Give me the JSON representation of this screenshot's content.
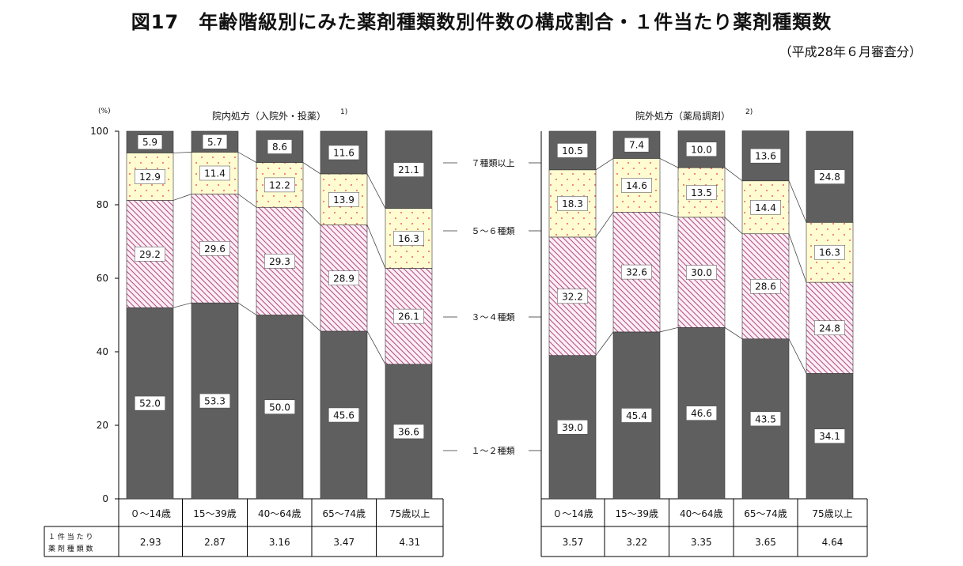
{
  "header": {
    "title": "図17　年齢階級別にみた薬剤種類数別件数の構成割合・１件当たり薬剤種類数",
    "subtitle": "（平成28年６月審査分）"
  },
  "row_label_line1": "１ 件 当 た り",
  "row_label_line2": "薬 剤 種 類 数",
  "unit_label": "(%)",
  "legend_labels": [
    "１～２種類",
    "３～４種類",
    "５～６種類",
    "７種類以上"
  ],
  "colors": {
    "dark": "#5f5f5f",
    "pink_fill": "#fbeef5",
    "pink_stripe": "#b4477e",
    "yellow_fill": "#fffcd2",
    "yellow_dot": "#ee3333",
    "axis": "#000000"
  },
  "chart_data": [
    {
      "type": "bar",
      "stacked": true,
      "title": "院内処方（入院外・投薬）",
      "note": "1)",
      "ylabel": "(%)",
      "ylim": [
        0,
        100
      ],
      "yticks": [
        0,
        20,
        40,
        60,
        80,
        100
      ],
      "categories": [
        "０～14歳",
        "15～39歳",
        "40～64歳",
        "65～74歳",
        "75歳以上"
      ],
      "series": [
        {
          "name": "１～２種類",
          "values": [
            52.0,
            53.3,
            50.0,
            45.6,
            36.6
          ],
          "labels": [
            "52.0",
            "53.3",
            "50.0",
            "45.6",
            "36.6"
          ]
        },
        {
          "name": "３～４種類",
          "values": [
            29.2,
            29.6,
            29.3,
            28.9,
            26.1
          ],
          "labels": [
            "29.2",
            "29.6",
            "29.3",
            "28.9",
            "26.1"
          ]
        },
        {
          "name": "５～６種類",
          "values": [
            12.9,
            11.4,
            12.2,
            13.9,
            16.3
          ],
          "labels": [
            "12.9",
            "11.4",
            "12.2",
            "13.9",
            "16.3"
          ]
        },
        {
          "name": "７種類以上",
          "values": [
            5.9,
            5.7,
            8.6,
            11.6,
            21.1
          ],
          "labels": [
            "5.9",
            "5.7",
            "8.6",
            "11.6",
            "21.1"
          ]
        }
      ],
      "per_case": [
        "2.93",
        "2.87",
        "3.16",
        "3.47",
        "4.31"
      ]
    },
    {
      "type": "bar",
      "stacked": true,
      "title": "院外処方（薬局調剤）",
      "note": "2)",
      "ylim": [
        0,
        100
      ],
      "categories": [
        "０～14歳",
        "15～39歳",
        "40～64歳",
        "65～74歳",
        "75歳以上"
      ],
      "series": [
        {
          "name": "１～２種類",
          "values": [
            39.0,
            45.4,
            46.6,
            43.5,
            34.1
          ],
          "labels": [
            "39.0",
            "45.4",
            "46.6",
            "43.5",
            "34.1"
          ]
        },
        {
          "name": "３～４種類",
          "values": [
            32.2,
            32.6,
            30.0,
            28.6,
            24.8
          ],
          "labels": [
            "32.2",
            "32.6",
            "30.0",
            "28.6",
            "24.8"
          ]
        },
        {
          "name": "５～６種類",
          "values": [
            18.3,
            14.6,
            13.5,
            14.4,
            16.3
          ],
          "labels": [
            "18.3",
            "14.6",
            "13.5",
            "14.4",
            "16.3"
          ]
        },
        {
          "name": "７種類以上",
          "values": [
            10.5,
            7.4,
            10.0,
            13.6,
            24.8
          ],
          "labels": [
            "10.5",
            "7.4",
            "10.0",
            "13.6",
            "24.8"
          ]
        }
      ],
      "per_case": [
        "3.57",
        "3.22",
        "3.35",
        "3.65",
        "4.64"
      ]
    }
  ]
}
